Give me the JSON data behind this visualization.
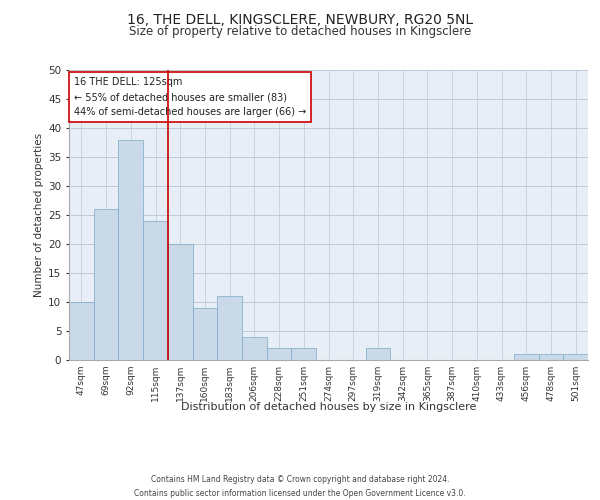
{
  "title_line1": "16, THE DELL, KINGSCLERE, NEWBURY, RG20 5NL",
  "title_line2": "Size of property relative to detached houses in Kingsclere",
  "xlabel": "Distribution of detached houses by size in Kingsclere",
  "ylabel": "Number of detached properties",
  "categories": [
    "47sqm",
    "69sqm",
    "92sqm",
    "115sqm",
    "137sqm",
    "160sqm",
    "183sqm",
    "206sqm",
    "228sqm",
    "251sqm",
    "274sqm",
    "297sqm",
    "319sqm",
    "342sqm",
    "365sqm",
    "387sqm",
    "410sqm",
    "433sqm",
    "456sqm",
    "478sqm",
    "501sqm"
  ],
  "values": [
    10,
    26,
    38,
    24,
    20,
    9,
    11,
    4,
    2,
    2,
    0,
    0,
    2,
    0,
    0,
    0,
    0,
    0,
    1,
    1,
    1
  ],
  "bar_color": "#c9d9e8",
  "bar_edge_color": "#7aaac8",
  "grid_color": "#c0c8d8",
  "background_color": "#e8eef5",
  "vline_x": 3.5,
  "vline_color": "#cc0000",
  "annotation_text": "16 THE DELL: 125sqm\n← 55% of detached houses are smaller (83)\n44% of semi-detached houses are larger (66) →",
  "annotation_box_color": "#ffffff",
  "annotation_box_edge_color": "#cc0000",
  "ylim": [
    0,
    50
  ],
  "yticks": [
    0,
    5,
    10,
    15,
    20,
    25,
    30,
    35,
    40,
    45,
    50
  ],
  "footer_line1": "Contains HM Land Registry data © Crown copyright and database right 2024.",
  "footer_line2": "Contains public sector information licensed under the Open Government Licence v3.0."
}
